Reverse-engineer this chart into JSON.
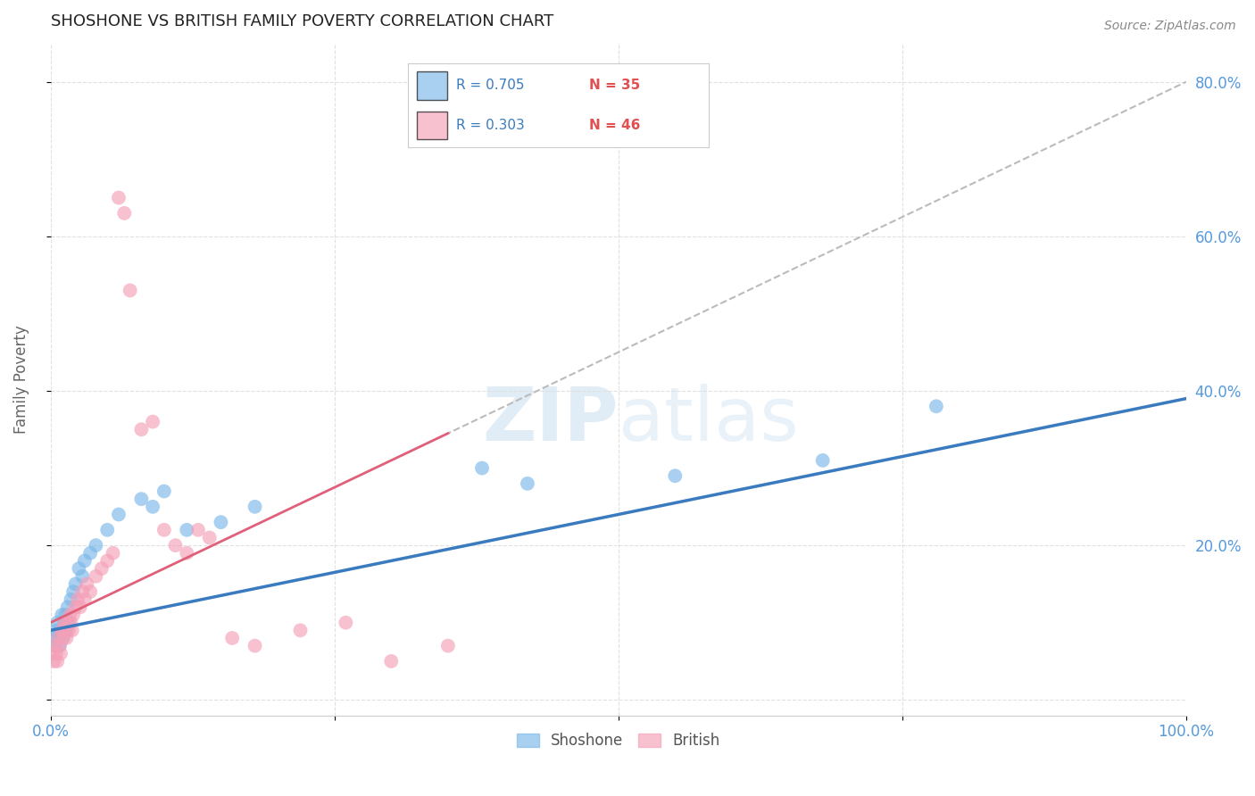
{
  "title": "SHOSHONE VS BRITISH FAMILY POVERTY CORRELATION CHART",
  "source": "Source: ZipAtlas.com",
  "ylabel": "Family Poverty",
  "xlim": [
    0,
    1.0
  ],
  "ylim": [
    -0.02,
    0.85
  ],
  "yticks": [
    0.0,
    0.2,
    0.4,
    0.6,
    0.8
  ],
  "xticks": [
    0.0,
    0.25,
    0.5,
    0.75,
    1.0
  ],
  "xtick_labels": [
    "0.0%",
    "",
    "",
    "",
    "100.0%"
  ],
  "ytick_labels": [
    "",
    "20.0%",
    "40.0%",
    "60.0%",
    "80.0%"
  ],
  "shoshone_color": "#7bb8e8",
  "british_color": "#f4a0b8",
  "shoshone_line_color": "#3a7abf",
  "british_line_color": "#e0607a",
  "legend_R_shoshone": "R = 0.705",
  "legend_N_shoshone": "N = 35",
  "legend_R_british": "R = 0.303",
  "legend_N_british": "N = 46",
  "shoshone_R": 0.705,
  "british_R": 0.303,
  "shoshone_x": [
    0.003,
    0.004,
    0.005,
    0.006,
    0.007,
    0.008,
    0.009,
    0.01,
    0.011,
    0.012,
    0.013,
    0.014,
    0.015,
    0.016,
    0.018,
    0.02,
    0.022,
    0.025,
    0.028,
    0.03,
    0.035,
    0.04,
    0.05,
    0.06,
    0.08,
    0.09,
    0.1,
    0.12,
    0.15,
    0.18,
    0.38,
    0.42,
    0.55,
    0.68,
    0.78
  ],
  "shoshone_y": [
    0.08,
    0.07,
    0.09,
    0.1,
    0.08,
    0.07,
    0.09,
    0.11,
    0.08,
    0.1,
    0.11,
    0.09,
    0.12,
    0.1,
    0.13,
    0.14,
    0.15,
    0.17,
    0.16,
    0.18,
    0.19,
    0.2,
    0.22,
    0.24,
    0.26,
    0.25,
    0.27,
    0.22,
    0.23,
    0.25,
    0.3,
    0.28,
    0.29,
    0.31,
    0.38
  ],
  "british_x": [
    0.002,
    0.003,
    0.004,
    0.005,
    0.006,
    0.007,
    0.008,
    0.009,
    0.01,
    0.011,
    0.012,
    0.013,
    0.014,
    0.015,
    0.016,
    0.017,
    0.018,
    0.019,
    0.02,
    0.022,
    0.024,
    0.026,
    0.028,
    0.03,
    0.032,
    0.035,
    0.04,
    0.045,
    0.05,
    0.055,
    0.06,
    0.065,
    0.07,
    0.08,
    0.09,
    0.1,
    0.11,
    0.12,
    0.13,
    0.14,
    0.16,
    0.18,
    0.22,
    0.26,
    0.3,
    0.35
  ],
  "british_y": [
    0.06,
    0.05,
    0.07,
    0.06,
    0.05,
    0.08,
    0.07,
    0.06,
    0.09,
    0.08,
    0.1,
    0.09,
    0.08,
    0.1,
    0.09,
    0.11,
    0.1,
    0.09,
    0.11,
    0.12,
    0.13,
    0.12,
    0.14,
    0.13,
    0.15,
    0.14,
    0.16,
    0.17,
    0.18,
    0.19,
    0.65,
    0.63,
    0.53,
    0.35,
    0.36,
    0.22,
    0.2,
    0.19,
    0.22,
    0.21,
    0.08,
    0.07,
    0.09,
    0.1,
    0.05,
    0.07
  ]
}
